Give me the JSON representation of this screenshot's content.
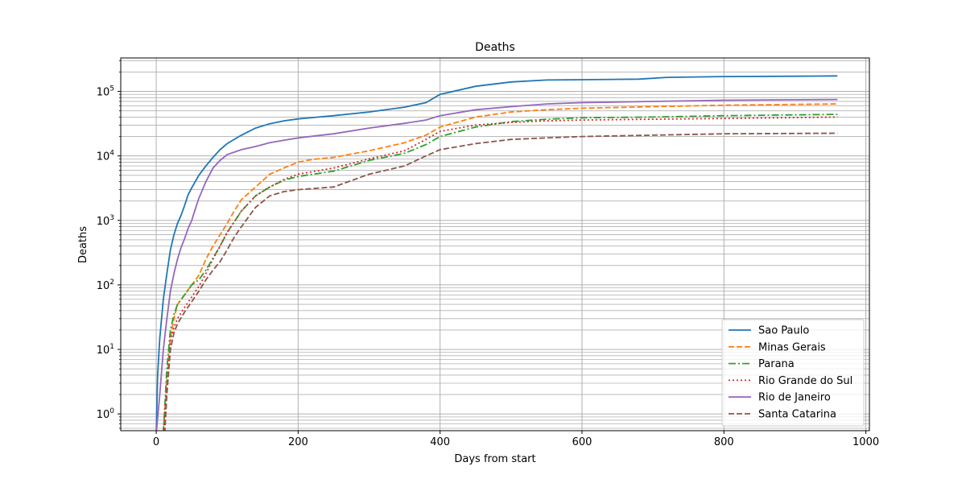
{
  "chart_data": {
    "type": "line",
    "title": "Deaths",
    "xlabel": "Days from start",
    "ylabel": "Deaths",
    "xlim": [
      -50,
      1005
    ],
    "ylim": [
      0.55,
      330000
    ],
    "yscale": "log",
    "grid": {
      "x": true,
      "y_major": true,
      "y_minor": true
    },
    "legend_position": "lower-right",
    "x_ticks": [
      {
        "v": 0,
        "label": "0"
      },
      {
        "v": 200,
        "label": "200"
      },
      {
        "v": 400,
        "label": "400"
      },
      {
        "v": 600,
        "label": "600"
      },
      {
        "v": 800,
        "label": "800"
      },
      {
        "v": 1000,
        "label": "1000"
      }
    ],
    "y_ticks": [
      {
        "v": 1,
        "base": "10",
        "exp": "0"
      },
      {
        "v": 10,
        "base": "10",
        "exp": "1"
      },
      {
        "v": 100,
        "base": "10",
        "exp": "2"
      },
      {
        "v": 1000,
        "base": "10",
        "exp": "3"
      },
      {
        "v": 10000,
        "base": "10",
        "exp": "4"
      },
      {
        "v": 100000,
        "base": "10",
        "exp": "5"
      }
    ],
    "series": [
      {
        "name": "Sao Paulo",
        "color": "#1f77b4",
        "dash": "",
        "x": [
          0,
          2,
          5,
          10,
          15,
          20,
          25,
          30,
          35,
          40,
          45,
          50,
          55,
          60,
          70,
          80,
          90,
          100,
          120,
          140,
          160,
          180,
          200,
          250,
          300,
          350,
          380,
          400,
          450,
          500,
          550,
          600,
          680,
          720,
          800,
          900,
          960
        ],
        "y": [
          0.5,
          4,
          15,
          60,
          150,
          350,
          600,
          900,
          1200,
          1700,
          2500,
          3200,
          4000,
          5000,
          7000,
          9500,
          12500,
          15500,
          21000,
          27000,
          31500,
          35000,
          37500,
          42000,
          48000,
          57000,
          67000,
          90000,
          120000,
          140000,
          150000,
          152000,
          155000,
          165000,
          170000,
          172000,
          174000
        ]
      },
      {
        "name": "Minas Gerais",
        "color": "#ff7f0e",
        "dash": "7,3",
        "x": [
          10,
          15,
          20,
          25,
          30,
          40,
          50,
          60,
          70,
          80,
          90,
          100,
          110,
          120,
          140,
          160,
          180,
          200,
          220,
          250,
          300,
          350,
          380,
          400,
          450,
          500,
          550,
          600,
          700,
          800,
          960
        ],
        "y": [
          0.5,
          3,
          15,
          30,
          50,
          70,
          100,
          140,
          250,
          400,
          600,
          900,
          1400,
          2100,
          3300,
          5200,
          6500,
          8000,
          8800,
          9500,
          12000,
          16000,
          21000,
          28000,
          40000,
          48000,
          52000,
          55000,
          58000,
          61000,
          64000
        ]
      },
      {
        "name": "Parana",
        "color": "#2ca02c",
        "dash": "9,3,2,3",
        "x": [
          10,
          15,
          20,
          25,
          30,
          40,
          50,
          60,
          70,
          80,
          90,
          100,
          110,
          120,
          140,
          160,
          180,
          200,
          250,
          300,
          350,
          380,
          400,
          450,
          500,
          550,
          600,
          700,
          800,
          960
        ],
        "y": [
          0.5,
          5,
          20,
          35,
          50,
          70,
          100,
          120,
          170,
          260,
          400,
          650,
          950,
          1400,
          2400,
          3300,
          4200,
          4800,
          5800,
          8500,
          11000,
          15000,
          20000,
          28000,
          34000,
          37000,
          39000,
          40000,
          42000,
          44000
        ]
      },
      {
        "name": "Rio Grande do Sul",
        "color": "#d62728",
        "dash": "2,3",
        "x": [
          10,
          15,
          20,
          25,
          30,
          40,
          50,
          60,
          70,
          80,
          90,
          100,
          110,
          120,
          140,
          160,
          180,
          200,
          250,
          300,
          350,
          380,
          400,
          450,
          500,
          550,
          600,
          700,
          800,
          960
        ],
        "y": [
          0.5,
          3,
          14,
          22,
          30,
          45,
          65,
          95,
          150,
          250,
          400,
          650,
          950,
          1400,
          2400,
          3300,
          4300,
          5200,
          6500,
          9000,
          12000,
          18000,
          24000,
          30000,
          33000,
          35000,
          36000,
          37000,
          38000,
          40000
        ]
      },
      {
        "name": "Rio de Janeiro",
        "color": "#9467bd",
        "dash": "",
        "x": [
          0,
          5,
          10,
          15,
          20,
          25,
          30,
          35,
          40,
          45,
          50,
          55,
          60,
          70,
          80,
          90,
          100,
          120,
          140,
          160,
          180,
          200,
          250,
          300,
          350,
          380,
          400,
          450,
          500,
          550,
          600,
          700,
          800,
          960
        ],
        "y": [
          0.5,
          2,
          10,
          30,
          80,
          150,
          250,
          380,
          520,
          750,
          1000,
          1500,
          2200,
          4000,
          6500,
          8500,
          10500,
          12500,
          14000,
          16000,
          17500,
          19000,
          22000,
          27000,
          32000,
          36000,
          42000,
          52000,
          58000,
          64000,
          67000,
          70000,
          73000,
          75000
        ]
      },
      {
        "name": "Santa Catarina",
        "color": "#8c564b",
        "dash": "7,3",
        "x": [
          12,
          15,
          20,
          25,
          30,
          40,
          50,
          60,
          70,
          80,
          90,
          100,
          110,
          120,
          140,
          160,
          180,
          200,
          250,
          300,
          350,
          380,
          400,
          450,
          500,
          550,
          600,
          700,
          800,
          960
        ],
        "y": [
          0.5,
          2,
          10,
          18,
          25,
          38,
          55,
          80,
          120,
          170,
          230,
          350,
          550,
          800,
          1600,
          2400,
          2800,
          3000,
          3300,
          5200,
          7000,
          10000,
          12500,
          15500,
          18000,
          19000,
          20000,
          21000,
          22000,
          22500
        ]
      }
    ]
  }
}
